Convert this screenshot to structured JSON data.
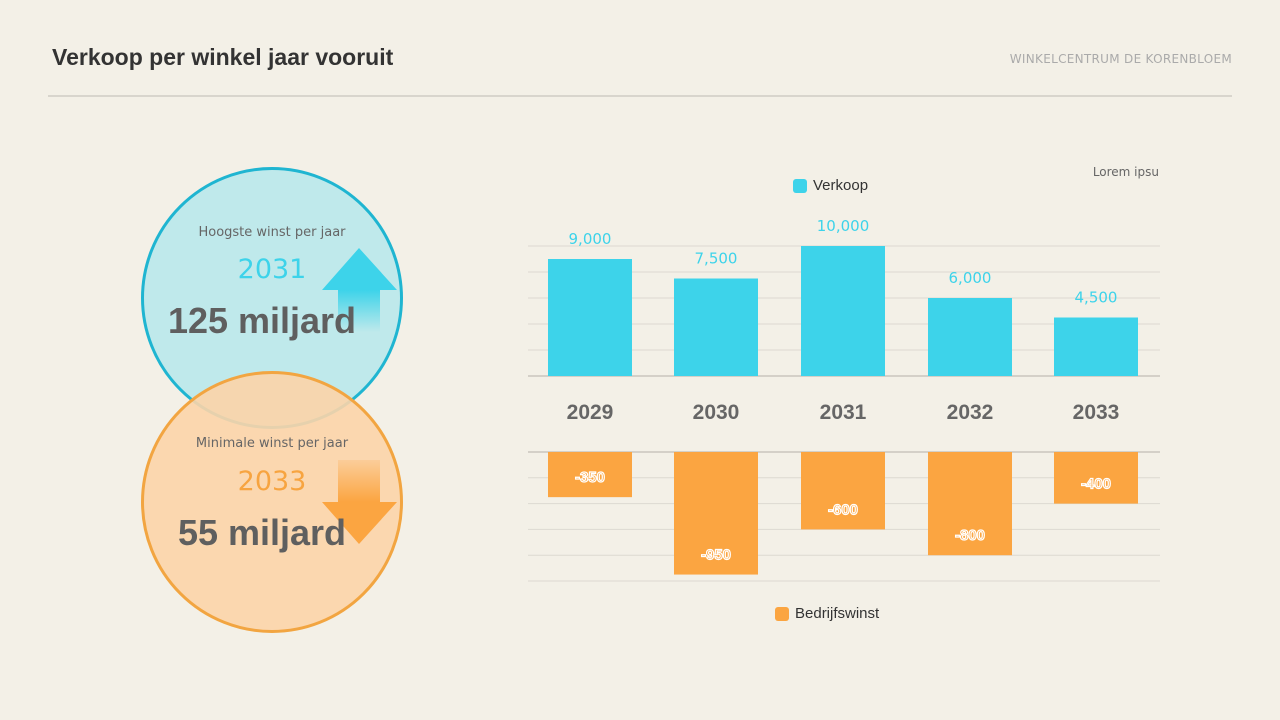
{
  "header": {
    "title": "Verkoop per winkel jaar vooruit",
    "brand": "WINKELCENTRUM DE KORENBLOEM"
  },
  "highlight_max": {
    "label": "Hoogste winst per jaar",
    "year": "2031",
    "value": "125 miljard"
  },
  "highlight_min": {
    "label": "Minimale winst per jaar",
    "year": "2033",
    "value": "55 miljard"
  },
  "note": "Lorem ipsu",
  "colors": {
    "cyan": "#3dd3ea",
    "orange": "#fba541"
  },
  "chart_data": {
    "type": "bar",
    "categories": [
      "2029",
      "2030",
      "2031",
      "2032",
      "2033"
    ],
    "series": [
      {
        "name": "Verkoop",
        "values": [
          9000,
          7500,
          10000,
          6000,
          4500
        ],
        "labels": [
          "9,000",
          "7,500",
          "10,000",
          "6,000",
          "4,500"
        ],
        "ylim": [
          0,
          10000
        ]
      },
      {
        "name": "Bedrijfswinst",
        "values": [
          -350,
          -950,
          -600,
          -800,
          -400
        ],
        "labels": [
          "-350",
          "-950",
          "-600",
          "-800",
          "-400"
        ],
        "ylim": [
          -1000,
          0
        ]
      }
    ]
  }
}
